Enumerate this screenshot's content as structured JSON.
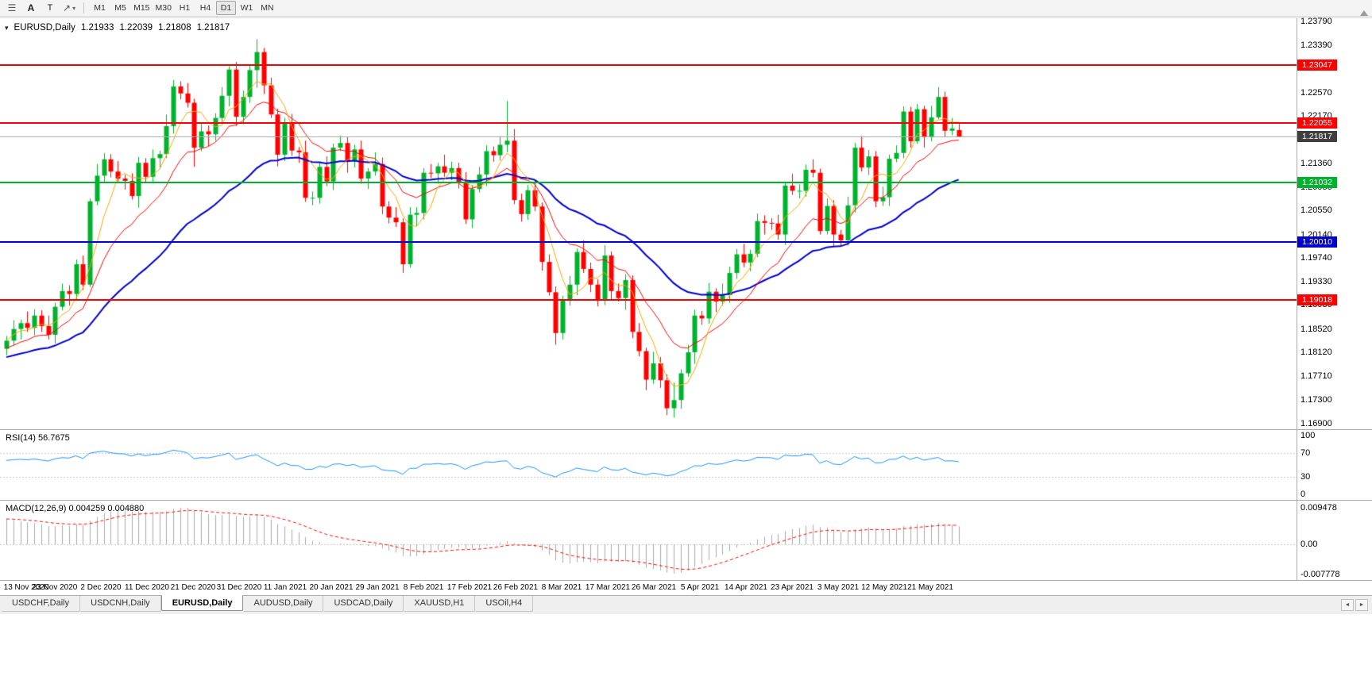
{
  "toolbar": {
    "buttons": {
      "annotate": "A",
      "text": "T"
    },
    "timeframes": [
      "M1",
      "M5",
      "M15",
      "M30",
      "H1",
      "H4",
      "D1",
      "W1",
      "MN"
    ],
    "active_timeframe": "D1"
  },
  "main_chart": {
    "symbol_label": "EURUSD,Daily",
    "ohlc": {
      "open": "1.21933",
      "high": "1.22039",
      "low": "1.21808",
      "close": "1.21817"
    },
    "price_axis_labels": [
      "1.23790",
      "1.23390",
      "1.22990",
      "1.22570",
      "1.22170",
      "1.21360",
      "1.20950",
      "1.20550",
      "1.20140",
      "1.19740",
      "1.19330",
      "1.18930",
      "1.18520",
      "1.18120",
      "1.17710",
      "1.17300",
      "1.16900"
    ],
    "hlines": [
      {
        "label": "1.23047",
        "price": 1.23047,
        "color": "#FF0000"
      },
      {
        "label": "1.22055",
        "price": 1.22055,
        "color": "#FF0000"
      },
      {
        "label": "1.21032",
        "price": 1.21032,
        "color": "#00B22D"
      },
      {
        "label": "1.20010",
        "price": 1.2001,
        "color": "#0000CD"
      },
      {
        "label": "1.19018",
        "price": 1.19018,
        "color": "#FF0000"
      }
    ],
    "bid_line": {
      "label": "1.21817",
      "price": 1.21817,
      "badge_color": "#3F3F3F"
    }
  },
  "rsi_panel": {
    "label": "RSI(14) 56.7675",
    "axis_labels": [
      "100",
      "70",
      "30",
      "0"
    ],
    "levels": [
      70,
      30
    ]
  },
  "macd_panel": {
    "label": "MACD(12,26,9) 0.004259 0.004880",
    "axis_labels": [
      "0.009478",
      "0.00",
      "-0.007778"
    ]
  },
  "tabs": {
    "items": [
      {
        "label": "USDCHF,Daily",
        "active": false
      },
      {
        "label": "USDCNH,Daily",
        "active": false
      },
      {
        "label": "EURUSD,Daily",
        "active": true
      },
      {
        "label": "AUDUSD,Daily",
        "active": false
      },
      {
        "label": "USDCAD,Daily",
        "active": false
      },
      {
        "label": "XAUUSD,H1",
        "active": false
      },
      {
        "label": "USOil,H4",
        "active": false
      }
    ],
    "scroll_left": "◄",
    "scroll_right": "►"
  },
  "colors": {
    "up": "#00B22D",
    "down": "#FF0000",
    "background": "#FFFFFF",
    "panel_border": "#ABABAB",
    "bid_line": "#B0B0B0",
    "axis_text": "#000000"
  },
  "chart_data": {
    "type": "candlestick",
    "symbol": "EURUSD",
    "timeframe": "Daily",
    "price_range": [
      1.168,
      1.2385
    ],
    "horizontal_levels": [
      1.23047,
      1.22055,
      1.21032,
      1.2001,
      1.19018
    ],
    "x_date_labels": [
      "13 Nov 2020",
      "23 Nov 2020",
      "2 Dec 2020",
      "11 Dec 2020",
      "21 Dec 2020",
      "31 Dec 2020",
      "11 Jan 2021",
      "20 Jan 2021",
      "29 Jan 2021",
      "8 Feb 2021",
      "17 Feb 2021",
      "26 Feb 2021",
      "8 Mar 2021",
      "17 Mar 2021",
      "26 Mar 2021",
      "5 Apr 2021",
      "14 Apr 2021",
      "23 Apr 2021",
      "3 May 2021",
      "12 May 2021",
      "21 May 2021"
    ],
    "overlays": [
      {
        "name": "ma-fast",
        "method": "sma",
        "period": 5,
        "color": "#FFA500"
      },
      {
        "name": "ma-medium",
        "method": "ema",
        "period": 13,
        "color": "#FF0000"
      },
      {
        "name": "ma-slow",
        "method": "ema",
        "period": 34,
        "color": "#0000CD"
      }
    ],
    "indicators": [
      {
        "name": "RSI",
        "period": 14,
        "current": 56.7675,
        "color": "#1E90FF",
        "levels": [
          70,
          30
        ],
        "range": [
          0,
          100
        ]
      },
      {
        "name": "MACD",
        "fast": 12,
        "slow": 26,
        "signal_period": 9,
        "macd_value": 0.004259,
        "signal_value": 0.00488,
        "histogram_color": "#A8A8A8",
        "signal_color": "#FF0000"
      }
    ],
    "candles_ohlc": [
      [
        1.1818,
        1.184,
        1.1807,
        1.1832
      ],
      [
        1.1832,
        1.1867,
        1.1823,
        1.1852
      ],
      [
        1.1852,
        1.1868,
        1.1834,
        1.1862
      ],
      [
        1.1862,
        1.1882,
        1.1847,
        1.1854
      ],
      [
        1.1854,
        1.1886,
        1.1841,
        1.1875
      ],
      [
        1.1875,
        1.1884,
        1.1847,
        1.1857
      ],
      [
        1.1857,
        1.1875,
        1.1834,
        1.1842
      ],
      [
        1.1842,
        1.1897,
        1.1827,
        1.189
      ],
      [
        1.189,
        1.193,
        1.1884,
        1.1917
      ],
      [
        1.1917,
        1.1927,
        1.1892,
        1.1912
      ],
      [
        1.1912,
        1.1971,
        1.1901,
        1.1963
      ],
      [
        1.1963,
        1.1978,
        1.1919,
        1.1928
      ],
      [
        1.1928,
        1.2076,
        1.1924,
        1.2071
      ],
      [
        1.2071,
        1.2135,
        1.2064,
        1.2115
      ],
      [
        1.2115,
        1.2154,
        1.2102,
        1.2143
      ],
      [
        1.2143,
        1.2152,
        1.2112,
        1.2122
      ],
      [
        1.2122,
        1.214,
        1.2102,
        1.211
      ],
      [
        1.211,
        1.2117,
        1.2091,
        1.2106
      ],
      [
        1.2106,
        1.2119,
        1.2074,
        1.208
      ],
      [
        1.208,
        1.2147,
        1.206,
        1.2137
      ],
      [
        1.2137,
        1.2145,
        1.2102,
        1.2113
      ],
      [
        1.2113,
        1.216,
        1.2104,
        1.2145
      ],
      [
        1.2145,
        1.2158,
        1.2127,
        1.2152
      ],
      [
        1.2152,
        1.222,
        1.2145,
        1.22
      ],
      [
        1.22,
        1.2279,
        1.2187,
        1.2268
      ],
      [
        1.2268,
        1.2277,
        1.2246,
        1.2256
      ],
      [
        1.2256,
        1.2274,
        1.2232,
        1.224
      ],
      [
        1.224,
        1.2247,
        1.213,
        1.2163
      ],
      [
        1.2163,
        1.2204,
        1.2157,
        1.2191
      ],
      [
        1.2191,
        1.2201,
        1.2166,
        1.2186
      ],
      [
        1.2186,
        1.2222,
        1.2175,
        1.2214
      ],
      [
        1.2214,
        1.2267,
        1.2205,
        1.2252
      ],
      [
        1.2252,
        1.2303,
        1.2234,
        1.2297
      ],
      [
        1.2297,
        1.231,
        1.22,
        1.2216
      ],
      [
        1.2216,
        1.2261,
        1.2203,
        1.225
      ],
      [
        1.225,
        1.2305,
        1.224,
        1.2296
      ],
      [
        1.2296,
        1.2349,
        1.2266,
        1.2327
      ],
      [
        1.2327,
        1.2334,
        1.2255,
        1.227
      ],
      [
        1.227,
        1.2283,
        1.2214,
        1.222
      ],
      [
        1.222,
        1.223,
        1.2131,
        1.2151
      ],
      [
        1.2151,
        1.2214,
        1.214,
        1.2206
      ],
      [
        1.2206,
        1.2221,
        1.2149,
        1.2158
      ],
      [
        1.2158,
        1.2164,
        1.2137,
        1.2155
      ],
      [
        1.2155,
        1.2175,
        1.207,
        1.2077
      ],
      [
        1.2077,
        1.2088,
        1.2064,
        1.2077
      ],
      [
        1.2077,
        1.2139,
        1.2067,
        1.213
      ],
      [
        1.213,
        1.2148,
        1.2097,
        1.2105
      ],
      [
        1.2105,
        1.217,
        1.209,
        1.2163
      ],
      [
        1.2163,
        1.2184,
        1.2157,
        1.2171
      ],
      [
        1.2171,
        1.2181,
        1.212,
        1.214
      ],
      [
        1.214,
        1.2168,
        1.2129,
        1.216
      ],
      [
        1.216,
        1.2175,
        1.2101,
        1.211
      ],
      [
        1.211,
        1.2128,
        1.2092,
        1.2122
      ],
      [
        1.2122,
        1.2155,
        1.2115,
        1.2135
      ],
      [
        1.2135,
        1.2146,
        1.2049,
        1.2062
      ],
      [
        1.2062,
        1.2071,
        1.2033,
        1.2043
      ],
      [
        1.2043,
        1.2061,
        1.2027,
        1.2035
      ],
      [
        1.2035,
        1.2042,
        1.1948,
        1.1963
      ],
      [
        1.1963,
        1.2061,
        1.1957,
        1.2048
      ],
      [
        1.2048,
        1.2061,
        1.2028,
        1.2051
      ],
      [
        1.2051,
        1.2128,
        1.204,
        1.212
      ],
      [
        1.212,
        1.2135,
        1.2111,
        1.2119
      ],
      [
        1.2119,
        1.2137,
        1.2101,
        1.2131
      ],
      [
        1.2131,
        1.2151,
        1.2113,
        1.212
      ],
      [
        1.212,
        1.2139,
        1.2107,
        1.2128
      ],
      [
        1.2128,
        1.2137,
        1.2093,
        1.2103
      ],
      [
        1.2103,
        1.2121,
        1.2032,
        1.204
      ],
      [
        1.204,
        1.2099,
        1.2025,
        1.2092
      ],
      [
        1.2092,
        1.213,
        1.2086,
        1.2117
      ],
      [
        1.2117,
        1.2167,
        1.2097,
        1.2157
      ],
      [
        1.2157,
        1.2165,
        1.2139,
        1.215
      ],
      [
        1.215,
        1.2183,
        1.2141,
        1.2168
      ],
      [
        1.2168,
        1.2243,
        1.2155,
        1.2175
      ],
      [
        1.2175,
        1.2195,
        1.2066,
        1.2073
      ],
      [
        1.2073,
        1.2084,
        1.2036,
        1.2049
      ],
      [
        1.2049,
        1.2099,
        1.2039,
        1.209
      ],
      [
        1.209,
        1.2108,
        1.2054,
        1.2062
      ],
      [
        1.2062,
        1.2069,
        1.1952,
        1.1967
      ],
      [
        1.1967,
        1.198,
        1.1909,
        1.1915
      ],
      [
        1.1915,
        1.1925,
        1.1825,
        1.1845
      ],
      [
        1.1845,
        1.1909,
        1.1834,
        1.1901
      ],
      [
        1.1901,
        1.1943,
        1.1892,
        1.1928
      ],
      [
        1.1928,
        1.199,
        1.191,
        1.1984
      ],
      [
        1.1984,
        1.2004,
        1.1948,
        1.1955
      ],
      [
        1.1955,
        1.1966,
        1.1915,
        1.1928
      ],
      [
        1.1928,
        1.1937,
        1.1891,
        1.1901
      ],
      [
        1.1901,
        1.1996,
        1.1893,
        1.1978
      ],
      [
        1.1978,
        1.1985,
        1.1902,
        1.1917
      ],
      [
        1.1917,
        1.193,
        1.1899,
        1.1905
      ],
      [
        1.1905,
        1.1946,
        1.1885,
        1.1936
      ],
      [
        1.1936,
        1.1944,
        1.1836,
        1.1847
      ],
      [
        1.1847,
        1.1862,
        1.1805,
        1.1814
      ],
      [
        1.1814,
        1.182,
        1.1747,
        1.1765
      ],
      [
        1.1765,
        1.1813,
        1.1758,
        1.1793
      ],
      [
        1.1793,
        1.1804,
        1.1751,
        1.1764
      ],
      [
        1.1764,
        1.1774,
        1.1704,
        1.1716
      ],
      [
        1.1716,
        1.176,
        1.17,
        1.173
      ],
      [
        1.173,
        1.1783,
        1.1715,
        1.1776
      ],
      [
        1.1776,
        1.1825,
        1.177,
        1.1812
      ],
      [
        1.1812,
        1.1885,
        1.1792,
        1.1875
      ],
      [
        1.1875,
        1.1883,
        1.1859,
        1.187
      ],
      [
        1.187,
        1.1931,
        1.1861,
        1.1916
      ],
      [
        1.1916,
        1.1922,
        1.1881,
        1.1899
      ],
      [
        1.1899,
        1.193,
        1.1892,
        1.191
      ],
      [
        1.191,
        1.1959,
        1.1897,
        1.1948
      ],
      [
        1.1948,
        1.1989,
        1.1938,
        1.198
      ],
      [
        1.198,
        1.1998,
        1.1958,
        1.1966
      ],
      [
        1.1966,
        1.1988,
        1.1951,
        1.1981
      ],
      [
        1.1981,
        1.205,
        1.1975,
        1.2037
      ],
      [
        1.2037,
        1.2047,
        1.2014,
        1.2034
      ],
      [
        1.2034,
        1.2042,
        1.2022,
        1.2033
      ],
      [
        1.2033,
        1.2048,
        1.2005,
        1.2014
      ],
      [
        1.2014,
        1.2104,
        1.1996,
        1.2098
      ],
      [
        1.2098,
        1.2118,
        1.2082,
        1.2089
      ],
      [
        1.2089,
        1.21,
        1.2076,
        1.2089
      ],
      [
        1.2089,
        1.2134,
        1.2079,
        1.2125
      ],
      [
        1.2125,
        1.2143,
        1.2112,
        1.212
      ],
      [
        1.212,
        1.2127,
        1.2014,
        1.202
      ],
      [
        1.202,
        1.2076,
        1.2014,
        1.2063
      ],
      [
        1.2063,
        1.2073,
        1.1994,
        1.2014
      ],
      [
        1.2014,
        1.2022,
        1.1993,
        1.2004
      ],
      [
        1.2004,
        1.2079,
        1.1995,
        1.2064
      ],
      [
        1.2064,
        1.2171,
        1.2052,
        1.2163
      ],
      [
        1.2163,
        1.2183,
        1.2122,
        1.2129
      ],
      [
        1.2129,
        1.2159,
        1.2116,
        1.2148
      ],
      [
        1.2148,
        1.2157,
        1.2061,
        1.2071
      ],
      [
        1.2071,
        1.2096,
        1.2063,
        1.2078
      ],
      [
        1.2078,
        1.2151,
        1.2063,
        1.2144
      ],
      [
        1.2144,
        1.2167,
        1.2138,
        1.2154
      ],
      [
        1.2154,
        1.2234,
        1.2145,
        1.2225
      ],
      [
        1.2225,
        1.2233,
        1.2163,
        1.2174
      ],
      [
        1.2174,
        1.2238,
        1.217,
        1.2229
      ],
      [
        1.2229,
        1.2235,
        1.2163,
        1.2181
      ],
      [
        1.2181,
        1.2235,
        1.2174,
        1.2215
      ],
      [
        1.2215,
        1.2267,
        1.2212,
        1.225
      ],
      [
        1.225,
        1.2259,
        1.2182,
        1.2192
      ],
      [
        1.2192,
        1.2214,
        1.2184,
        1.2196
      ],
      [
        1.21933,
        1.22039,
        1.21808,
        1.21817
      ]
    ]
  }
}
